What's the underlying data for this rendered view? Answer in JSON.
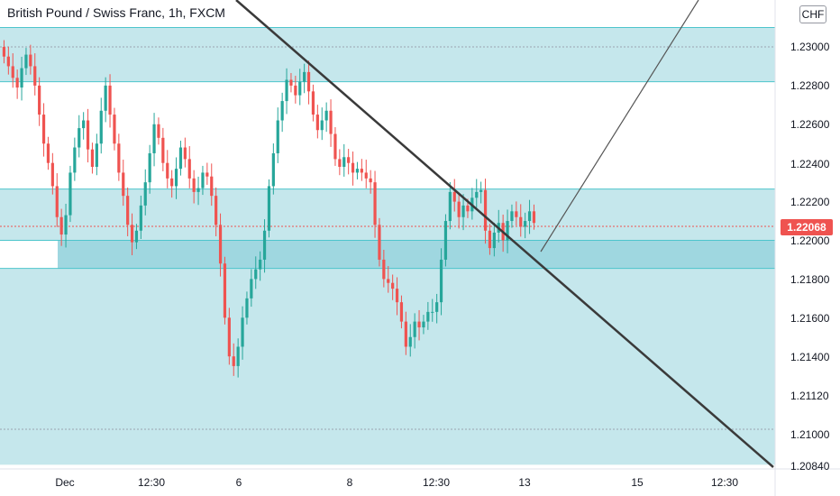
{
  "header": {
    "title": "British Pound / Swiss Franc, 1h, FXCM",
    "currency_button": "CHF"
  },
  "colors": {
    "up": "#26a69a",
    "down": "#ef5350",
    "zone_fill": "#b2dfe6",
    "zone_fill_dark": "#7fcad5",
    "zone_border": "#4dc5cc",
    "trendline": "#3a3a3a",
    "price_badge": "#ef5350"
  },
  "chart_data": {
    "type": "candlestick",
    "symbol": "British Pound / Swiss Franc, 1h, FXCM",
    "ylim": [
      1.2084,
      1.232
    ],
    "y_ticks": [
      "1.23000",
      "1.22800",
      "1.22600",
      "1.22400",
      "1.22200",
      "1.22000",
      "1.21800",
      "1.21600",
      "1.21400",
      "1.21120",
      "1.21000",
      "1.20840"
    ],
    "x_ticks": [
      "Dec",
      "12:30",
      "6",
      "8",
      "12:30",
      "13",
      "15",
      "12:30"
    ],
    "current_price": "1.22068",
    "candle_closes": [
      1.2295,
      1.229,
      1.2284,
      1.2279,
      1.2289,
      1.2296,
      1.229,
      1.228,
      1.2265,
      1.225,
      1.224,
      1.2228,
      1.2212,
      1.2203,
      1.2213,
      1.2235,
      1.2248,
      1.2258,
      1.2262,
      1.2247,
      1.2238,
      1.225,
      1.2267,
      1.228,
      1.2265,
      1.225,
      1.2235,
      1.2223,
      1.2208,
      1.2199,
      1.2205,
      1.2218,
      1.223,
      1.2245,
      1.226,
      1.2253,
      1.224,
      1.2232,
      1.2228,
      1.2237,
      1.2248,
      1.2242,
      1.2232,
      1.2225,
      1.2227,
      1.2235,
      1.2233,
      1.2223,
      1.2208,
      1.2188,
      1.216,
      1.214,
      1.2135,
      1.2145,
      1.216,
      1.217,
      1.218,
      1.2185,
      1.219,
      1.2205,
      1.2228,
      1.2245,
      1.2262,
      1.2272,
      1.2283,
      1.228,
      1.2275,
      1.2282,
      1.2287,
      1.2277,
      1.2265,
      1.2257,
      1.2262,
      1.2267,
      1.2255,
      1.2242,
      1.2238,
      1.2243,
      1.224,
      1.2235,
      1.2237,
      1.2235,
      1.2232,
      1.223,
      1.2208,
      1.219,
      1.218,
      1.2178,
      1.2175,
      1.2168,
      1.2158,
      1.2145,
      1.215,
      1.2158,
      1.2155,
      1.2158,
      1.2163,
      1.2163,
      1.2168,
      1.219,
      1.221,
      1.2225,
      1.222,
      1.2212,
      1.2218,
      1.2215,
      1.2222,
      1.2225,
      1.2226,
      1.2205,
      1.2196,
      1.2204,
      1.2209,
      1.22,
      1.221,
      1.2215,
      1.2212,
      1.2207,
      1.221,
      1.2215,
      1.2209
    ]
  }
}
